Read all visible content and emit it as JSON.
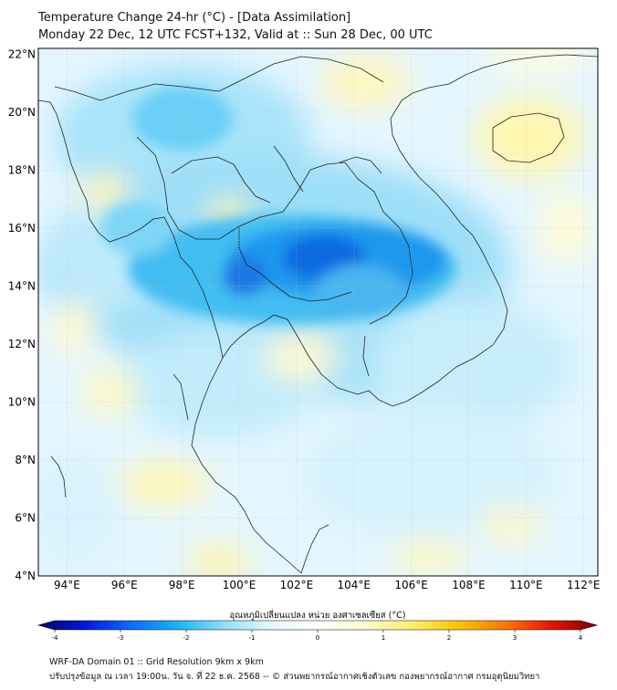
{
  "title_line1": "Temperature Change 24-hr (°C) - [Data Assimilation]",
  "title_line2": "Monday 22 Dec, 12 UTC FCST+132, Valid at :: Sun 28 Dec, 00 UTC",
  "map": {
    "lon_range": [
      93,
      112.5
    ],
    "lat_range": [
      4,
      22.2
    ],
    "lat_ticks": [
      "4°N",
      "6°N",
      "8°N",
      "10°N",
      "12°N",
      "14°N",
      "16°N",
      "18°N",
      "20°N",
      "22°N"
    ],
    "lon_ticks": [
      "94°E",
      "96°E",
      "98°E",
      "100°E",
      "102°E",
      "104°E",
      "106°E",
      "108°E",
      "110°E",
      "112°E"
    ],
    "grid": true
  },
  "colorbar": {
    "label": "อุณหภูมิเปลี่ยนแปลง หน่วย องศาเซลเซียส (°C)",
    "ticks": [
      "-4",
      "-3",
      "-2",
      "-1",
      "0",
      "1",
      "2",
      "3",
      "4"
    ],
    "range": [
      -4,
      4
    ],
    "colors": [
      "#08006e",
      "#0019d9",
      "#0a6cff",
      "#19b4ff",
      "#8fe0ff",
      "#e8f8ff",
      "#ffffff",
      "#fffad0",
      "#fff070",
      "#ffc500",
      "#ff7a00",
      "#e81600",
      "#7a0000"
    ]
  },
  "footer_line1": "WRF-DA Domain 01 :: Grid Resolution 9km x 9km",
  "footer_line2": "ปรับปรุงข้อมูล ณ เวลา 19:00น. วัน จ. ที่ 22 ธ.ค. 2568 -- © ส่วนพยากรณ์อากาศเชิงตัวเลข กองพยากรณ์อากาศ กรมอุตุนิยมวิทยา"
}
